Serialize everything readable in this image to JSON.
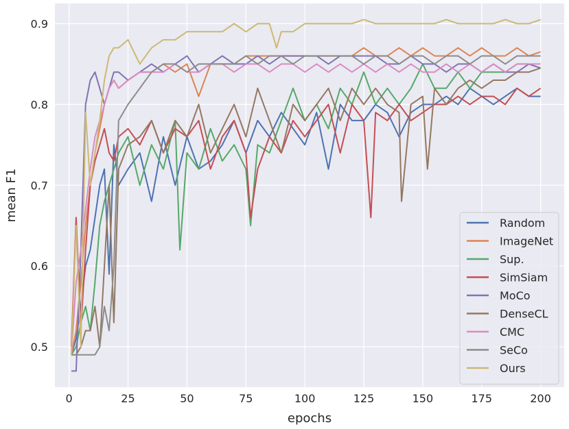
{
  "chart_data": {
    "type": "line",
    "title": "",
    "xlabel": "epochs",
    "ylabel": "mean F1",
    "xlim": [
      -6,
      210
    ],
    "ylim": [
      0.45,
      0.925
    ],
    "xticks": [
      0,
      25,
      50,
      75,
      100,
      125,
      150,
      175,
      200
    ],
    "yticks": [
      0.5,
      0.6,
      0.7,
      0.8,
      0.9
    ],
    "ytick_labels": [
      "0.5",
      "0.6",
      "0.7",
      "0.8",
      "0.9"
    ],
    "grid": true,
    "legend_position": "lower-right",
    "series": [
      {
        "name": "Random",
        "color": "#4c72b0",
        "x": [
          1,
          3,
          5,
          7,
          9,
          11,
          13,
          15,
          17,
          19,
          21,
          25,
          30,
          35,
          40,
          45,
          50,
          55,
          60,
          65,
          70,
          75,
          80,
          85,
          90,
          95,
          100,
          105,
          110,
          115,
          120,
          125,
          130,
          135,
          140,
          145,
          150,
          155,
          160,
          165,
          170,
          175,
          180,
          185,
          190,
          195,
          200
        ],
        "y": [
          0.49,
          0.51,
          0.55,
          0.6,
          0.62,
          0.66,
          0.7,
          0.72,
          0.59,
          0.75,
          0.7,
          0.72,
          0.74,
          0.68,
          0.76,
          0.7,
          0.76,
          0.72,
          0.73,
          0.75,
          0.78,
          0.74,
          0.78,
          0.76,
          0.79,
          0.77,
          0.75,
          0.79,
          0.72,
          0.8,
          0.78,
          0.78,
          0.8,
          0.79,
          0.76,
          0.79,
          0.8,
          0.8,
          0.81,
          0.8,
          0.82,
          0.81,
          0.8,
          0.81,
          0.82,
          0.81,
          0.81
        ]
      },
      {
        "name": "ImageNet",
        "color": "#dd8452",
        "x": [
          1,
          3,
          5,
          7,
          9,
          11,
          13,
          15,
          17,
          19,
          21,
          25,
          30,
          35,
          40,
          45,
          50,
          55,
          60,
          65,
          70,
          75,
          80,
          85,
          90,
          95,
          100,
          105,
          110,
          115,
          120,
          125,
          130,
          135,
          140,
          145,
          150,
          155,
          160,
          165,
          170,
          175,
          180,
          185,
          190,
          195,
          200
        ],
        "y": [
          0.49,
          0.52,
          0.58,
          0.65,
          0.7,
          0.74,
          0.77,
          0.8,
          0.82,
          0.83,
          0.82,
          0.83,
          0.84,
          0.84,
          0.85,
          0.84,
          0.85,
          0.81,
          0.85,
          0.85,
          0.85,
          0.86,
          0.86,
          0.86,
          0.86,
          0.86,
          0.86,
          0.86,
          0.86,
          0.86,
          0.86,
          0.87,
          0.86,
          0.86,
          0.87,
          0.86,
          0.87,
          0.86,
          0.86,
          0.87,
          0.86,
          0.87,
          0.86,
          0.86,
          0.87,
          0.86,
          0.865
        ]
      },
      {
        "name": "Sup.",
        "color": "#55a868",
        "x": [
          1,
          3,
          5,
          7,
          9,
          11,
          13,
          15,
          17,
          19,
          21,
          25,
          30,
          35,
          40,
          45,
          47,
          50,
          55,
          60,
          65,
          70,
          75,
          77,
          80,
          85,
          90,
          95,
          100,
          105,
          110,
          115,
          120,
          125,
          130,
          135,
          140,
          145,
          150,
          155,
          160,
          165,
          170,
          175,
          180,
          185,
          190,
          195,
          200
        ],
        "y": [
          0.49,
          0.5,
          0.53,
          0.55,
          0.52,
          0.58,
          0.65,
          0.68,
          0.7,
          0.72,
          0.74,
          0.76,
          0.7,
          0.75,
          0.72,
          0.78,
          0.62,
          0.74,
          0.72,
          0.77,
          0.73,
          0.75,
          0.72,
          0.65,
          0.75,
          0.74,
          0.78,
          0.82,
          0.78,
          0.8,
          0.77,
          0.82,
          0.8,
          0.84,
          0.8,
          0.82,
          0.8,
          0.82,
          0.85,
          0.82,
          0.82,
          0.84,
          0.82,
          0.84,
          0.84,
          0.84,
          0.85,
          0.85,
          0.845
        ]
      },
      {
        "name": "SimSiam",
        "color": "#c44e52",
        "x": [
          1,
          3,
          5,
          7,
          9,
          11,
          13,
          15,
          17,
          19,
          21,
          25,
          30,
          35,
          40,
          45,
          50,
          55,
          60,
          65,
          70,
          75,
          77,
          80,
          85,
          90,
          95,
          100,
          105,
          110,
          115,
          120,
          125,
          128,
          130,
          135,
          140,
          145,
          150,
          155,
          160,
          165,
          170,
          175,
          180,
          185,
          190,
          195,
          200
        ],
        "y": [
          0.5,
          0.66,
          0.52,
          0.62,
          0.7,
          0.73,
          0.75,
          0.77,
          0.74,
          0.73,
          0.76,
          0.77,
          0.75,
          0.78,
          0.74,
          0.77,
          0.76,
          0.78,
          0.72,
          0.76,
          0.78,
          0.74,
          0.66,
          0.72,
          0.76,
          0.74,
          0.78,
          0.76,
          0.78,
          0.8,
          0.74,
          0.8,
          0.78,
          0.66,
          0.79,
          0.78,
          0.8,
          0.78,
          0.79,
          0.8,
          0.8,
          0.81,
          0.8,
          0.81,
          0.81,
          0.8,
          0.82,
          0.81,
          0.82
        ]
      },
      {
        "name": "MoCo",
        "color": "#8172b3",
        "x": [
          1,
          3,
          5,
          7,
          9,
          11,
          13,
          15,
          17,
          19,
          21,
          25,
          30,
          35,
          40,
          45,
          50,
          55,
          60,
          65,
          70,
          75,
          80,
          85,
          90,
          95,
          100,
          105,
          110,
          115,
          120,
          125,
          130,
          135,
          140,
          145,
          150,
          155,
          160,
          165,
          170,
          175,
          180,
          185,
          190,
          195,
          200
        ],
        "y": [
          0.47,
          0.47,
          0.62,
          0.8,
          0.83,
          0.84,
          0.82,
          0.8,
          0.82,
          0.84,
          0.84,
          0.83,
          0.84,
          0.85,
          0.84,
          0.85,
          0.86,
          0.84,
          0.85,
          0.86,
          0.85,
          0.85,
          0.86,
          0.85,
          0.86,
          0.86,
          0.86,
          0.86,
          0.85,
          0.86,
          0.86,
          0.86,
          0.86,
          0.85,
          0.85,
          0.86,
          0.85,
          0.85,
          0.84,
          0.85,
          0.85,
          0.84,
          0.85,
          0.84,
          0.84,
          0.85,
          0.845
        ]
      },
      {
        "name": "DenseCL",
        "color": "#937860",
        "x": [
          1,
          3,
          5,
          7,
          9,
          11,
          13,
          15,
          17,
          19,
          21,
          25,
          30,
          35,
          40,
          45,
          50,
          55,
          60,
          65,
          70,
          75,
          80,
          85,
          90,
          95,
          100,
          105,
          110,
          115,
          120,
          125,
          130,
          135,
          140,
          141,
          145,
          150,
          152,
          155,
          160,
          165,
          170,
          175,
          180,
          185,
          190,
          195,
          200
        ],
        "y": [
          0.49,
          0.49,
          0.5,
          0.52,
          0.52,
          0.55,
          0.5,
          0.6,
          0.7,
          0.53,
          0.72,
          0.75,
          0.76,
          0.78,
          0.74,
          0.78,
          0.76,
          0.8,
          0.74,
          0.77,
          0.8,
          0.76,
          0.82,
          0.78,
          0.74,
          0.8,
          0.78,
          0.8,
          0.82,
          0.78,
          0.82,
          0.8,
          0.82,
          0.8,
          0.79,
          0.68,
          0.8,
          0.81,
          0.72,
          0.82,
          0.8,
          0.82,
          0.83,
          0.82,
          0.83,
          0.83,
          0.84,
          0.84,
          0.845
        ]
      },
      {
        "name": "CMC",
        "color": "#da8bc3",
        "x": [
          1,
          3,
          5,
          7,
          9,
          11,
          13,
          15,
          17,
          19,
          21,
          25,
          30,
          35,
          40,
          45,
          50,
          55,
          60,
          65,
          70,
          75,
          80,
          85,
          90,
          95,
          100,
          105,
          110,
          115,
          120,
          125,
          130,
          135,
          140,
          145,
          150,
          155,
          160,
          165,
          170,
          175,
          180,
          185,
          190,
          195,
          200
        ],
        "y": [
          0.49,
          0.58,
          0.62,
          0.67,
          0.72,
          0.76,
          0.78,
          0.8,
          0.82,
          0.83,
          0.82,
          0.83,
          0.84,
          0.84,
          0.84,
          0.85,
          0.84,
          0.84,
          0.85,
          0.85,
          0.84,
          0.85,
          0.85,
          0.84,
          0.85,
          0.85,
          0.84,
          0.85,
          0.84,
          0.85,
          0.84,
          0.85,
          0.84,
          0.85,
          0.84,
          0.85,
          0.84,
          0.84,
          0.85,
          0.84,
          0.85,
          0.84,
          0.85,
          0.84,
          0.85,
          0.85,
          0.85
        ]
      },
      {
        "name": "SeCo",
        "color": "#8c8c8c",
        "x": [
          1,
          3,
          5,
          7,
          9,
          11,
          13,
          15,
          17,
          19,
          21,
          25,
          30,
          35,
          40,
          45,
          50,
          55,
          60,
          65,
          70,
          75,
          80,
          85,
          90,
          95,
          100,
          105,
          110,
          115,
          120,
          125,
          130,
          135,
          140,
          145,
          150,
          155,
          160,
          165,
          170,
          175,
          180,
          185,
          190,
          195,
          200
        ],
        "y": [
          0.49,
          0.49,
          0.49,
          0.49,
          0.49,
          0.49,
          0.5,
          0.55,
          0.52,
          0.6,
          0.78,
          0.8,
          0.82,
          0.84,
          0.85,
          0.85,
          0.84,
          0.85,
          0.85,
          0.85,
          0.85,
          0.86,
          0.85,
          0.86,
          0.86,
          0.85,
          0.86,
          0.86,
          0.86,
          0.86,
          0.86,
          0.85,
          0.86,
          0.86,
          0.85,
          0.86,
          0.86,
          0.85,
          0.86,
          0.86,
          0.85,
          0.86,
          0.86,
          0.85,
          0.86,
          0.86,
          0.86
        ]
      },
      {
        "name": "Ours",
        "color": "#ccb974",
        "x": [
          1,
          3,
          5,
          7,
          9,
          11,
          13,
          15,
          17,
          19,
          21,
          25,
          30,
          35,
          40,
          45,
          50,
          55,
          60,
          65,
          70,
          75,
          80,
          85,
          88,
          90,
          95,
          100,
          105,
          110,
          115,
          120,
          125,
          130,
          135,
          140,
          145,
          150,
          155,
          160,
          165,
          170,
          175,
          180,
          185,
          190,
          195,
          200
        ],
        "y": [
          0.49,
          0.65,
          0.5,
          0.79,
          0.7,
          0.74,
          0.78,
          0.83,
          0.86,
          0.87,
          0.87,
          0.88,
          0.85,
          0.87,
          0.88,
          0.88,
          0.89,
          0.89,
          0.89,
          0.89,
          0.9,
          0.89,
          0.9,
          0.9,
          0.87,
          0.89,
          0.89,
          0.9,
          0.9,
          0.9,
          0.9,
          0.9,
          0.905,
          0.9,
          0.9,
          0.9,
          0.9,
          0.9,
          0.9,
          0.905,
          0.9,
          0.9,
          0.9,
          0.9,
          0.905,
          0.9,
          0.9,
          0.905
        ]
      }
    ]
  }
}
